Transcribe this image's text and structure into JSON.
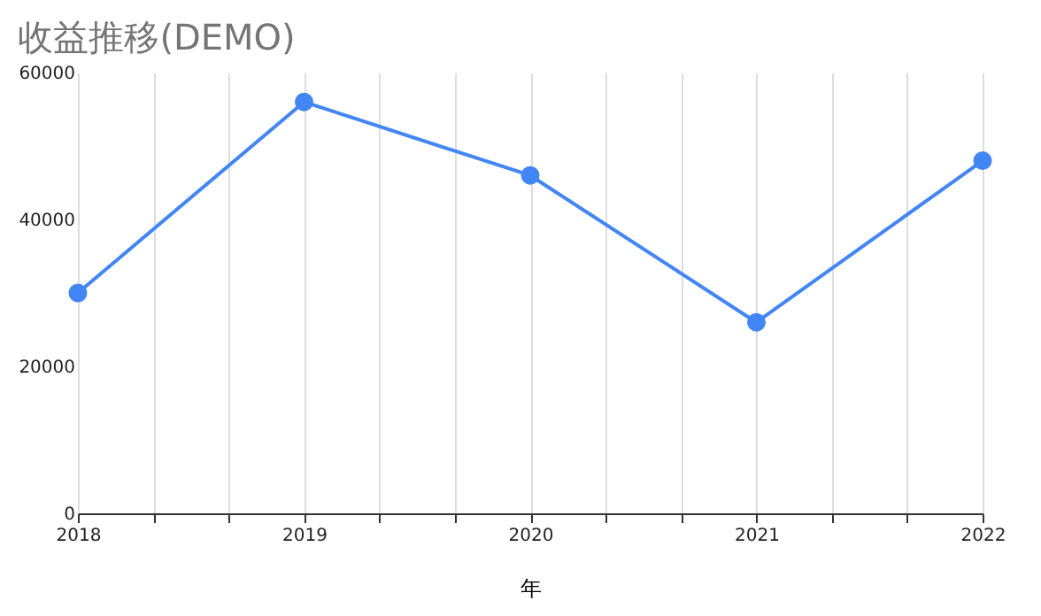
{
  "chart_data": {
    "type": "line",
    "title": "收益推移(DEMO)",
    "xlabel": "年",
    "x": [
      2018,
      2019,
      2020,
      2021,
      2022
    ],
    "series": [
      {
        "color": "#4285f4",
        "values": [
          30000,
          56000,
          46000,
          26000,
          48000
        ]
      }
    ],
    "xlim": [
      2018,
      2022
    ],
    "xticks": [
      2018,
      {
        "value": 2018.333,
        "label": null
      },
      {
        "value": 2018.667,
        "label": null
      },
      2019,
      {
        "value": 2019.333,
        "label": null
      },
      {
        "value": 2019.667,
        "label": null
      },
      2020,
      {
        "value": 2020.333,
        "label": null
      },
      {
        "value": 2020.667,
        "label": null
      },
      2021,
      {
        "value": 2021.333,
        "label": null
      },
      {
        "value": 2021.667,
        "label": null
      },
      2022
    ],
    "ylim": [
      0,
      60000
    ],
    "yticks": [
      0,
      20000,
      40000,
      60000
    ],
    "grid": "x",
    "marker": "circle",
    "line_style": "solid",
    "legend": false
  }
}
